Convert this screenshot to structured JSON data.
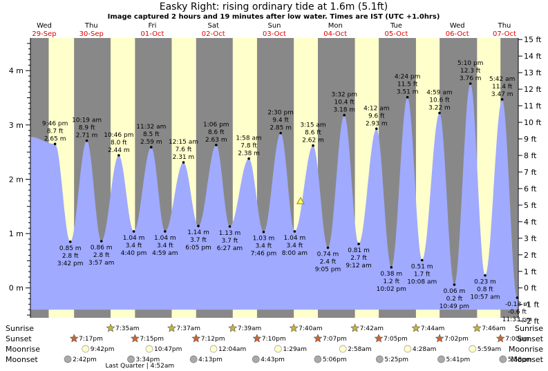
{
  "header": {
    "title": "Easky Right: rising  ordinary tide at 1.6m (5.1ft)",
    "subtitle": "Image captured 2 hours and 19 minutes after low water. Times are IST (UTC +1.0hrs)"
  },
  "days": [
    {
      "name": "Wed",
      "date": "29-Sep"
    },
    {
      "name": "Thu",
      "date": "30-Sep"
    },
    {
      "name": "Fri",
      "date": "01-Oct"
    },
    {
      "name": "Sat",
      "date": "02-Oct"
    },
    {
      "name": "Sun",
      "date": "03-Oct"
    },
    {
      "name": "Mon",
      "date": "04-Oct"
    },
    {
      "name": "Tue",
      "date": "05-Oct"
    },
    {
      "name": "Wed",
      "date": "06-Oct"
    },
    {
      "name": "Thu",
      "date": "07-Oct"
    }
  ],
  "colors": {
    "day_bg": "#ffffcc",
    "night_bg": "#888888",
    "water": "#a0aaff",
    "sunrise_star": "#c8b432",
    "sunset_star": "#d2642d",
    "moonrise": "#ffffcc",
    "moonset": "#aaaaaa",
    "date_text": "#e00000"
  },
  "chart_data": {
    "type": "area",
    "x_unit": "days from 29-Sep 00:00 IST",
    "y_left": {
      "unit": "m",
      "ticks": [
        "0 m",
        "1 m",
        "2 m",
        "3 m",
        "4 m"
      ],
      "values": [
        0,
        1,
        2,
        3,
        4
      ],
      "range": [
        -0.55,
        4.6
      ]
    },
    "y_right": {
      "unit": "ft",
      "ticks": [
        "-2 ft",
        "-1 ft",
        "0 ft",
        "1 ft",
        "2 ft",
        "3 ft",
        "4 ft",
        "5 ft",
        "6 ft",
        "7 ft",
        "8 ft",
        "9 ft",
        "10 ft",
        "11 ft",
        "12 ft",
        "13 ft",
        "14 ft",
        "15 ft"
      ],
      "values": [
        -2,
        -1,
        0,
        1,
        2,
        3,
        4,
        5,
        6,
        7,
        8,
        9,
        10,
        11,
        12,
        13,
        14,
        15
      ]
    },
    "series_start": {
      "x": 0.0,
      "y": 2.78
    },
    "series_end": {
      "x": 8.0,
      "y": 3.4
    },
    "extrema": [
      {
        "x": 0.404,
        "y": 2.65,
        "m": "2.65 m",
        "ft": "8.7 ft",
        "time": "9:46 pm",
        "kind": "high"
      },
      {
        "x": 0.654,
        "y": 0.85,
        "m": "0.85 m",
        "ft": "2.8 ft",
        "time": "3:42 pm",
        "kind": "low"
      },
      {
        "x": 0.925,
        "y": 2.71,
        "m": "2.71 m",
        "ft": "8.9 ft",
        "time": "10:19 am",
        "kind": "high"
      },
      {
        "x": 1.164,
        "y": 0.86,
        "m": "0.86 m",
        "ft": "2.8 ft",
        "time": "3:57 am",
        "kind": "low"
      },
      {
        "x": 1.449,
        "y": 2.44,
        "m": "2.44 m",
        "ft": "8.0 ft",
        "time": "10:46 pm",
        "kind": "high"
      },
      {
        "x": 1.695,
        "y": 1.04,
        "m": "1.04 m",
        "ft": "3.4 ft",
        "time": "4:40 pm",
        "kind": "low"
      },
      {
        "x": 1.981,
        "y": 2.59,
        "m": "2.59 m",
        "ft": "8.5 ft",
        "time": "11:32 am",
        "kind": "high"
      },
      {
        "x": 2.208,
        "y": 1.04,
        "m": "1.04 m",
        "ft": "3.4 ft",
        "time": "4:59 am",
        "kind": "low"
      },
      {
        "x": 2.51,
        "y": 2.31,
        "m": "2.31 m",
        "ft": "7.6 ft",
        "time": "12:15 am",
        "kind": "high"
      },
      {
        "x": 2.754,
        "y": 1.14,
        "m": "1.14 m",
        "ft": "3.7 ft",
        "time": "6:05 pm",
        "kind": "low"
      },
      {
        "x": 3.046,
        "y": 2.63,
        "m": "2.63 m",
        "ft": "8.6 ft",
        "time": "1:06 pm",
        "kind": "high"
      },
      {
        "x": 3.269,
        "y": 1.13,
        "m": "1.13 m",
        "ft": "3.7 ft",
        "time": "6:27 am",
        "kind": "low"
      },
      {
        "x": 3.582,
        "y": 2.38,
        "m": "2.38 m",
        "ft": "7.8 ft",
        "time": "1:58 am",
        "kind": "high"
      },
      {
        "x": 3.824,
        "y": 1.03,
        "m": "1.03 m",
        "ft": "3.4 ft",
        "time": "7:46 pm",
        "kind": "low"
      },
      {
        "x": 4.104,
        "y": 2.85,
        "m": "2.85 m",
        "ft": "9.4 ft",
        "time": "2:30 pm",
        "kind": "high"
      },
      {
        "x": 4.333,
        "y": 1.04,
        "m": "1.04 m",
        "ft": "3.4 ft",
        "time": "8:00 am",
        "kind": "low"
      },
      {
        "x": 4.635,
        "y": 2.62,
        "m": "2.62 m",
        "ft": "8.6 ft",
        "time": "3:15 am",
        "kind": "high"
      },
      {
        "x": 4.878,
        "y": 0.74,
        "m": "0.74 m",
        "ft": "2.4 ft",
        "time": "9:05 pm",
        "kind": "low"
      },
      {
        "x": 5.147,
        "y": 3.18,
        "m": "3.18 m",
        "ft": "10.4 ft",
        "time": "3:32 pm",
        "kind": "high"
      },
      {
        "x": 5.383,
        "y": 0.81,
        "m": "0.81 m",
        "ft": "2.7 ft",
        "time": "9:12 am",
        "kind": "low"
      },
      {
        "x": 5.675,
        "y": 2.93,
        "m": "2.93 m",
        "ft": "9.6 ft",
        "time": "4:12 am",
        "kind": "high"
      },
      {
        "x": 5.918,
        "y": 0.38,
        "m": "0.38 m",
        "ft": "1.2 ft",
        "time": "10:02 pm",
        "kind": "low"
      },
      {
        "x": 6.183,
        "y": 3.51,
        "m": "3.51 m",
        "ft": "11.5 ft",
        "time": "4:24 pm",
        "kind": "high"
      },
      {
        "x": 6.422,
        "y": 0.51,
        "m": "0.51 m",
        "ft": "1.7 ft",
        "time": "10:08 am",
        "kind": "low"
      },
      {
        "x": 6.708,
        "y": 3.22,
        "m": "3.22 m",
        "ft": "10.6 ft",
        "time": "4:59 am",
        "kind": "high"
      },
      {
        "x": 6.951,
        "y": 0.06,
        "m": "0.06 m",
        "ft": "0.2 ft",
        "time": "10:49 pm",
        "kind": "low"
      },
      {
        "x": 7.215,
        "y": 3.76,
        "m": "3.76 m",
        "ft": "12.3 ft",
        "time": "5:10 pm",
        "kind": "high"
      },
      {
        "x": 7.456,
        "y": 0.23,
        "m": "0.23 m",
        "ft": "0.8 ft",
        "time": "10:57 am",
        "kind": "low"
      },
      {
        "x": 7.736,
        "y": 3.47,
        "m": "3.47 m",
        "ft": "11.4 ft",
        "time": "5:42 am",
        "kind": "high"
      },
      {
        "x": 7.982,
        "y": -0.18,
        "m": "-0.18 m",
        "ft": "-0.6 ft",
        "time": "11:33 pm",
        "kind": "low"
      }
    ],
    "current": {
      "x": 4.43,
      "y": 1.6
    },
    "nights": [
      [
        0.0,
        0.3
      ],
      [
        0.716,
        1.315
      ],
      [
        1.715,
        2.317
      ],
      [
        2.717,
        3.318
      ],
      [
        3.716,
        4.319
      ],
      [
        4.714,
        5.321
      ],
      [
        5.712,
        6.322
      ],
      [
        6.71,
        7.324
      ],
      [
        7.708,
        8.0
      ]
    ]
  },
  "astro": {
    "labels": {
      "sunrise": "Sunrise",
      "sunset": "Sunset",
      "moonrise": "Moonrise",
      "moonset": "Moonset"
    },
    "sunrise": [
      {
        "x": 1.315,
        "text": "7:35am"
      },
      {
        "x": 2.317,
        "text": "7:37am"
      },
      {
        "x": 3.318,
        "text": "7:39am"
      },
      {
        "x": 4.319,
        "text": "7:40am"
      },
      {
        "x": 5.321,
        "text": "7:42am"
      },
      {
        "x": 6.322,
        "text": "7:44am"
      },
      {
        "x": 7.324,
        "text": "7:46am"
      }
    ],
    "sunset": [
      {
        "x": 0.716,
        "text": "7:17pm"
      },
      {
        "x": 1.715,
        "text": "7:15pm"
      },
      {
        "x": 2.717,
        "text": "7:12pm"
      },
      {
        "x": 3.716,
        "text": "7:10pm"
      },
      {
        "x": 4.714,
        "text": "7:07pm"
      },
      {
        "x": 5.712,
        "text": "7:05pm"
      },
      {
        "x": 6.71,
        "text": "7:02pm"
      },
      {
        "x": 7.708,
        "text": "7:00pm"
      }
    ],
    "moonrise": [
      {
        "x": 0.904,
        "text": "9:42pm"
      },
      {
        "x": 1.949,
        "text": "10:47pm"
      },
      {
        "x": 3.003,
        "text": "12:04am"
      },
      {
        "x": 4.062,
        "text": "1:29am"
      },
      {
        "x": 5.124,
        "text": "2:58am"
      },
      {
        "x": 6.186,
        "text": "4:28am"
      },
      {
        "x": 7.249,
        "text": "5:59am"
      }
    ],
    "moonset": [
      {
        "x": 0.613,
        "text": "2:42pm"
      },
      {
        "x": 1.649,
        "text": "3:34pm"
      },
      {
        "x": 2.676,
        "text": "4:13pm"
      },
      {
        "x": 3.697,
        "text": "4:43pm"
      },
      {
        "x": 4.713,
        "text": "5:06pm"
      },
      {
        "x": 5.726,
        "text": "5:25pm"
      },
      {
        "x": 6.737,
        "text": "5:41pm"
      },
      {
        "x": 7.749,
        "text": "5:58pm"
      }
    ],
    "phase": {
      "x": 1.649,
      "text": "Last Quarter | 4:52am"
    }
  }
}
